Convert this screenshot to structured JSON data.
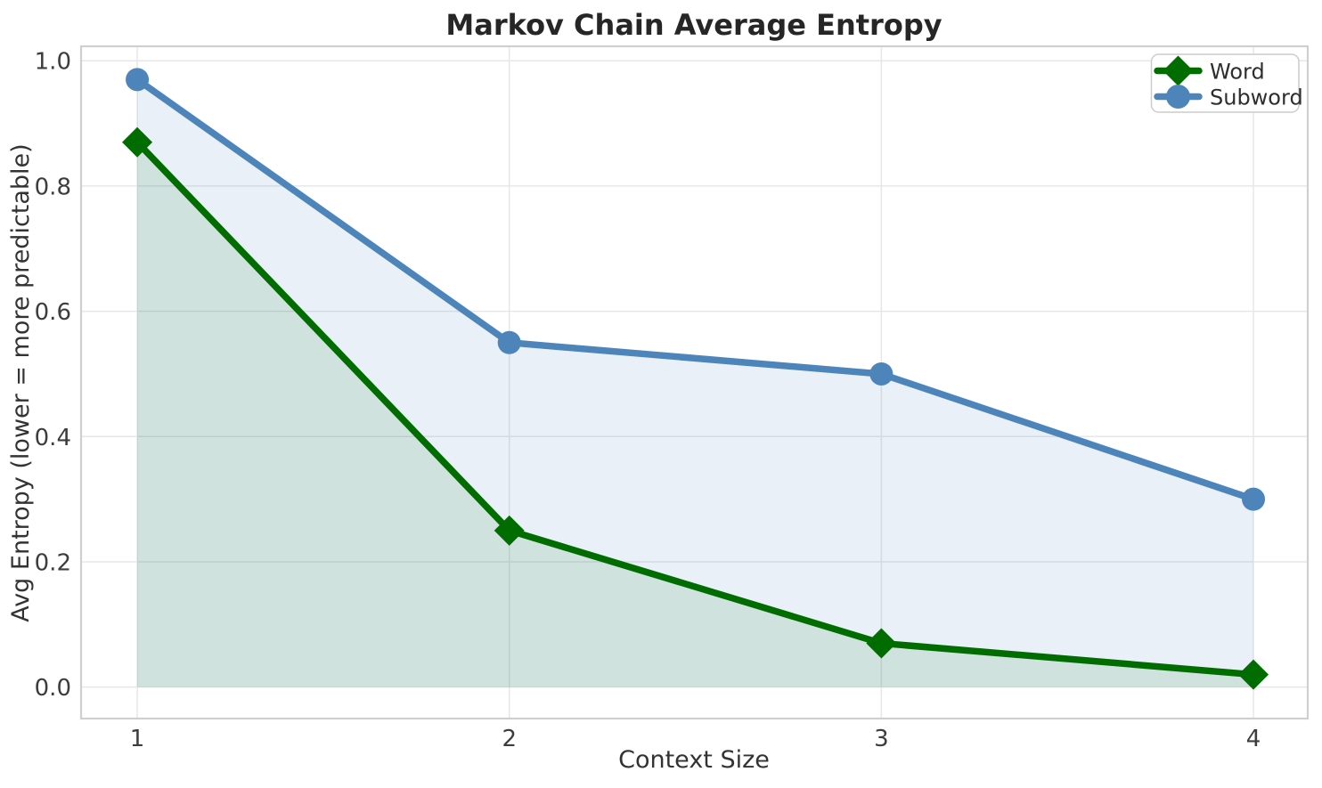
{
  "chart_data": {
    "type": "line",
    "title": "Markov Chain Average Entropy",
    "xlabel": "Context Size",
    "ylabel": "Avg Entropy (lower = more predictable)",
    "x": [
      1,
      2,
      3,
      4
    ],
    "series": [
      {
        "name": "Word",
        "values": [
          0.87,
          0.25,
          0.07,
          0.02
        ],
        "color": "#016d01",
        "marker": "diamond",
        "area_fill": true,
        "fill_opacity": 0.11
      },
      {
        "name": "Subword",
        "values": [
          0.97,
          0.55,
          0.5,
          0.3
        ],
        "color": "#4d85bb",
        "marker": "circle",
        "area_fill": true,
        "fill_opacity": 0.12
      }
    ],
    "xticks": {
      "values": [
        1,
        2,
        3,
        4
      ],
      "labels": [
        "1",
        "2",
        "3",
        "4"
      ]
    },
    "yticks": {
      "values": [
        0.0,
        0.2,
        0.4,
        0.6,
        0.8,
        1.0
      ],
      "labels": [
        "0.0",
        "0.2",
        "0.4",
        "0.6",
        "0.8",
        "1.0"
      ]
    },
    "xlim": [
      0.849,
      4.146
    ],
    "ylim": [
      -0.0502,
      1.0231
    ],
    "grid": true,
    "legend_position": "upper right",
    "colors": {
      "grid": "#e7e7e7",
      "spine": "#cfcfcf",
      "background": "#ffffff",
      "legend_border": "#cccccc"
    }
  }
}
